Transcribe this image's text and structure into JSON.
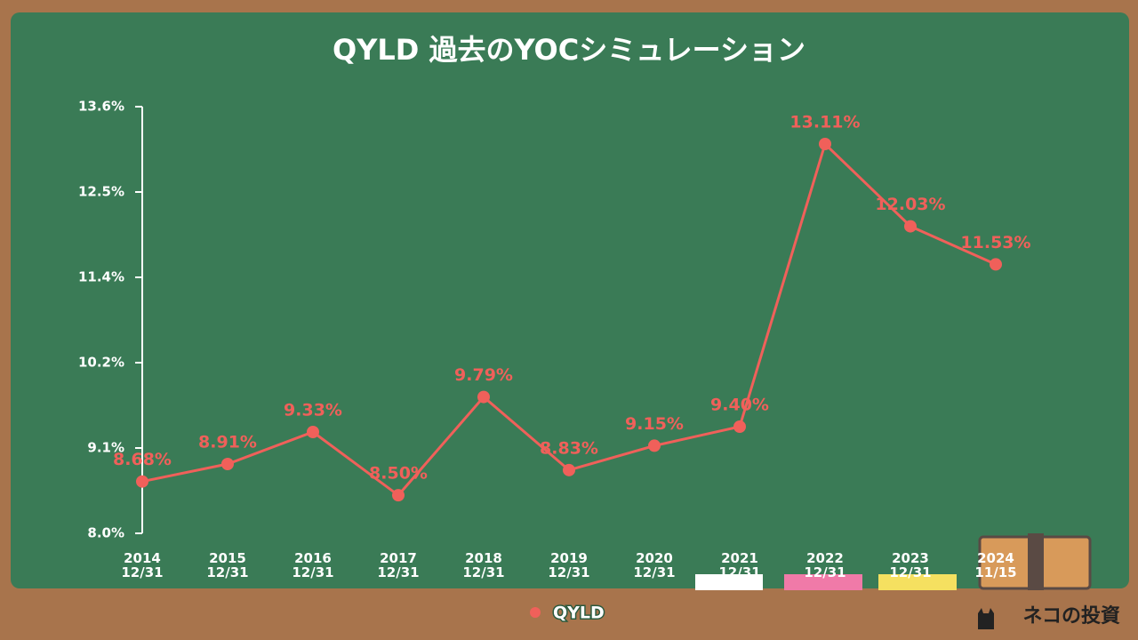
{
  "chart_data": {
    "type": "line",
    "title": "QYLD 過去のYOCシミュレーション",
    "categories": [
      "2014\n12/31",
      "2015\n12/31",
      "2016\n12/31",
      "2017\n12/31",
      "2018\n12/31",
      "2019\n12/31",
      "2020\n12/31",
      "2021\n12/31",
      "2022\n12/31",
      "2023\n12/31",
      "2024\n11/15"
    ],
    "series": [
      {
        "name": "QYLD",
        "color": "#f0605a",
        "values": [
          8.68,
          8.91,
          9.33,
          8.5,
          9.79,
          8.83,
          9.15,
          9.4,
          13.11,
          12.03,
          11.53
        ],
        "value_labels": [
          "8.68%",
          "8.91%",
          "9.33%",
          "8.50%",
          "9.79%",
          "8.83%",
          "9.15%",
          "9.40%",
          "13.11%",
          "12.03%",
          "11.53%"
        ]
      }
    ],
    "ylim": [
      8.0,
      13.6
    ],
    "yticks": [
      {
        "value": 8.0,
        "label": "8.0%"
      },
      {
        "value": 9.12,
        "label": "9.1%"
      },
      {
        "value": 10.24,
        "label": "10.2%"
      },
      {
        "value": 11.36,
        "label": "11.4%"
      },
      {
        "value": 12.48,
        "label": "12.5%"
      },
      {
        "value": 13.6,
        "label": "13.6%"
      }
    ],
    "legend": "bottom"
  },
  "brand": "ネコの投資"
}
